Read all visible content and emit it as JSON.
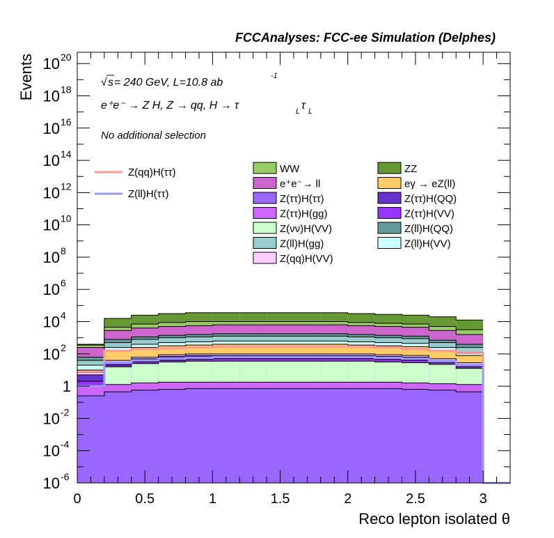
{
  "chart_data": {
    "type": "area",
    "title": "FCCAnalyses: FCC-ee Simulation (Delphes)",
    "xlabel": "Reco lepton isolated θ",
    "ylabel": "Events",
    "xlim": [
      0,
      3.2
    ],
    "ylim_log10": [
      -6,
      20.7
    ],
    "log_y": true,
    "x_ticks": [
      {
        "v": 0,
        "label": "0"
      },
      {
        "v": 0.5,
        "label": "0.5"
      },
      {
        "v": 1,
        "label": "1"
      },
      {
        "v": 1.5,
        "label": "1.5"
      },
      {
        "v": 2,
        "label": "2"
      },
      {
        "v": 2.5,
        "label": "2.5"
      },
      {
        "v": 3,
        "label": "3"
      }
    ],
    "y_ticks": [
      {
        "e": -6,
        "base": "10",
        "exp": "-6"
      },
      {
        "e": -4,
        "base": "10",
        "exp": "-4"
      },
      {
        "e": -2,
        "base": "10",
        "exp": "-2"
      },
      {
        "e": 0,
        "base": "1",
        "exp": ""
      },
      {
        "e": 2,
        "base": "10",
        "exp": "2"
      },
      {
        "e": 4,
        "base": "10",
        "exp": "4"
      },
      {
        "e": 6,
        "base": "10",
        "exp": "6"
      },
      {
        "e": 8,
        "base": "10",
        "exp": "8"
      },
      {
        "e": 10,
        "base": "10",
        "exp": "10"
      },
      {
        "e": 12,
        "base": "10",
        "exp": "12"
      },
      {
        "e": 14,
        "base": "10",
        "exp": "14"
      },
      {
        "e": 16,
        "base": "10",
        "exp": "16"
      },
      {
        "e": 18,
        "base": "10",
        "exp": "18"
      },
      {
        "e": 20,
        "base": "10",
        "exp": "20"
      }
    ],
    "bin_edges": [
      0,
      0.2,
      0.4,
      0.6,
      0.8,
      1.0,
      1.2,
      1.4,
      1.6,
      1.8,
      2.0,
      2.2,
      2.4,
      2.6,
      2.8,
      3.0
    ],
    "stack_cumulative_log10": [
      {
        "name": "Z(ττ)H(ττ)",
        "color": "#9966ff",
        "values": [
          -0.6,
          -0.35,
          -0.25,
          -0.2,
          -0.15,
          -0.15,
          -0.15,
          -0.15,
          -0.15,
          -0.15,
          -0.15,
          -0.15,
          -0.2,
          -0.25,
          -0.35
        ]
      },
      {
        "name": "Z(ττ)H(gg)",
        "color": "#cc66ff",
        "values": [
          0.0,
          0.1,
          0.2,
          0.25,
          0.25,
          0.25,
          0.25,
          0.25,
          0.25,
          0.25,
          0.25,
          0.25,
          0.2,
          0.15,
          0.1
        ]
      },
      {
        "name": "Z(νν)H(VV)",
        "color": "#ccffcc",
        "values": [
          -0.3,
          1.2,
          1.4,
          1.5,
          1.55,
          1.55,
          1.55,
          1.55,
          1.55,
          1.55,
          1.55,
          1.5,
          1.45,
          1.35,
          1.1
        ]
      },
      {
        "name": "Z(ττ)H(VV)",
        "color": "#9933ff",
        "values": [
          0.3,
          1.3,
          1.5,
          1.6,
          1.65,
          1.7,
          1.7,
          1.7,
          1.7,
          1.7,
          1.7,
          1.65,
          1.6,
          1.45,
          1.2
        ]
      },
      {
        "name": "Z(ττ)H(QQ)",
        "color": "#6633cc",
        "values": [
          0.7,
          1.5,
          1.7,
          1.85,
          1.9,
          1.9,
          1.9,
          1.9,
          1.9,
          1.9,
          1.9,
          1.85,
          1.8,
          1.6,
          1.35
        ]
      },
      {
        "name": "Z(qq)H(VV)",
        "color": "#ffccff",
        "values": [
          0.85,
          1.6,
          1.8,
          1.95,
          2.0,
          2.0,
          2.0,
          2.0,
          2.0,
          2.0,
          2.0,
          1.95,
          1.9,
          1.7,
          1.45
        ]
      },
      {
        "name": "eγ → eZ(ll)",
        "color": "#ffcc66",
        "values": [
          1.0,
          2.2,
          2.4,
          2.5,
          2.55,
          2.6,
          2.6,
          2.6,
          2.6,
          2.6,
          2.55,
          2.5,
          2.45,
          2.2,
          1.9
        ]
      },
      {
        "name": "Z(ll)H(VV)",
        "color": "#ccffff",
        "values": [
          1.3,
          2.4,
          2.6,
          2.7,
          2.75,
          2.8,
          2.8,
          2.8,
          2.8,
          2.8,
          2.75,
          2.7,
          2.65,
          2.4,
          2.1
        ]
      },
      {
        "name": "Z(ll)H(gg)",
        "color": "#99cccc",
        "values": [
          1.6,
          2.7,
          2.9,
          3.0,
          3.05,
          3.1,
          3.1,
          3.1,
          3.1,
          3.1,
          3.05,
          3.0,
          2.95,
          2.7,
          2.4
        ]
      },
      {
        "name": "Z(ll)H(QQ)",
        "color": "#669999",
        "values": [
          1.8,
          2.9,
          3.05,
          3.15,
          3.2,
          3.25,
          3.25,
          3.25,
          3.25,
          3.25,
          3.2,
          3.15,
          3.1,
          2.85,
          2.6
        ]
      },
      {
        "name": "e⁺e⁻→ ll",
        "color": "#cc66cc",
        "values": [
          2.4,
          3.45,
          3.6,
          3.7,
          3.75,
          3.8,
          3.8,
          3.8,
          3.8,
          3.8,
          3.75,
          3.7,
          3.65,
          3.45,
          3.2
        ]
      },
      {
        "name": "WW",
        "color": "#99cc66",
        "values": [
          2.55,
          3.65,
          3.85,
          3.95,
          4.0,
          4.0,
          4.0,
          4.0,
          4.0,
          4.0,
          3.95,
          3.9,
          3.85,
          3.7,
          3.5
        ]
      },
      {
        "name": "ZZ",
        "color": "#669933",
        "values": [
          2.6,
          4.2,
          4.4,
          4.5,
          4.55,
          4.55,
          4.55,
          4.55,
          4.55,
          4.55,
          4.5,
          4.45,
          4.4,
          4.3,
          4.1
        ]
      }
    ],
    "signal_lines_log10": [
      {
        "name": "Z(qq)H(ττ)",
        "color": "#ff9999",
        "values": [
          0.9,
          2.2,
          2.3,
          2.35,
          2.4,
          2.45,
          2.45,
          2.45,
          2.45,
          2.45,
          2.45,
          2.4,
          2.3,
          2.2,
          2.05
        ]
      },
      {
        "name": "Z(ll)H(ττ)",
        "color": "#9999ff",
        "values": [
          0.0,
          1.45,
          1.6,
          1.7,
          1.75,
          1.8,
          1.8,
          1.8,
          1.8,
          1.8,
          1.8,
          1.75,
          1.7,
          1.55,
          1.3
        ]
      }
    ],
    "legend_placement": "top-right",
    "grid": false
  },
  "annotations": {
    "sqrt_symbol": "√",
    "energy_var": "s",
    "energy_rest": " = 240 GeV, L=10.8 ab",
    "energy_exp": "-1",
    "process_line": "e⁺e⁻ → Z H, Z → qq, H → τ",
    "tau_sub1": "L",
    "tau_sym": "τ",
    "tau_sub2": "L",
    "selection": "No additional selection"
  },
  "legend_left": [
    {
      "label": "Z(qq)H(ττ)",
      "color": "#ff9999"
    },
    {
      "label": "Z(ll)H(ττ)",
      "color": "#9999ff"
    }
  ],
  "legend_col1": [
    {
      "label": "WW",
      "color": "#99cc66"
    },
    {
      "label": "e⁺e⁻→ ll",
      "color": "#cc66cc"
    },
    {
      "label": "Z(ττ)H(ττ)",
      "color": "#9966ff"
    },
    {
      "label": "Z(ττ)H(gg)",
      "color": "#cc66ff"
    },
    {
      "label": "Z(νν)H(VV)",
      "color": "#ccffcc"
    },
    {
      "label": "Z(ll)H(gg)",
      "color": "#99cccc"
    },
    {
      "label": "Z(qq)H(VV)",
      "color": "#ffccff"
    }
  ],
  "legend_col2": [
    {
      "label": "ZZ",
      "color": "#669933"
    },
    {
      "label": "eγ → eZ(ll)",
      "color": "#ffcc66"
    },
    {
      "label": "Z(ττ)H(QQ)",
      "color": "#6633cc"
    },
    {
      "label": "Z(ττ)H(VV)",
      "color": "#9933ff"
    },
    {
      "label": "Z(ll)H(QQ)",
      "color": "#669999"
    },
    {
      "label": "Z(ll)H(VV)",
      "color": "#ccffff"
    }
  ]
}
